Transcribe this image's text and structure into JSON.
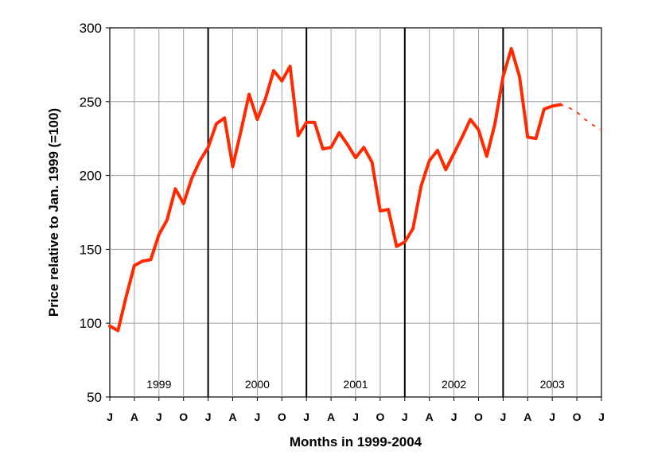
{
  "chart_data": {
    "type": "line",
    "title": "",
    "xlabel": "Months in 1999-2004",
    "ylabel": "Price relative to Jan. 1999 (=100)",
    "ylim": [
      50,
      300
    ],
    "yticks": [
      50,
      100,
      150,
      200,
      250,
      300
    ],
    "grid": true,
    "month_tick_labels": [
      "J",
      "A",
      "J",
      "O",
      "J",
      "A",
      "J",
      "O",
      "J",
      "A",
      "J",
      "O",
      "J",
      "A",
      "J",
      "O",
      "J",
      "A",
      "J",
      "O",
      "J"
    ],
    "year_labels": [
      "1999",
      "2000",
      "2001",
      "2002",
      "2003"
    ],
    "line_color": "#ff2a00",
    "series": [
      {
        "values": [
          98,
          95,
          118,
          139,
          142,
          143,
          160,
          170,
          191,
          181,
          198,
          210,
          219,
          235,
          239,
          206,
          230,
          255,
          238,
          252,
          271,
          264,
          274,
          227,
          236,
          236,
          218,
          219,
          229,
          221,
          212,
          219,
          209,
          176,
          177,
          152,
          155,
          164,
          193,
          210,
          217,
          204,
          215,
          226,
          238,
          231,
          213,
          235,
          267,
          286,
          267,
          226,
          225,
          245,
          247,
          248
        ]
      },
      {
        "style": "dotted",
        "start_index": 55,
        "values": [
          248,
          246,
          243,
          238,
          234,
          231
        ]
      }
    ]
  }
}
